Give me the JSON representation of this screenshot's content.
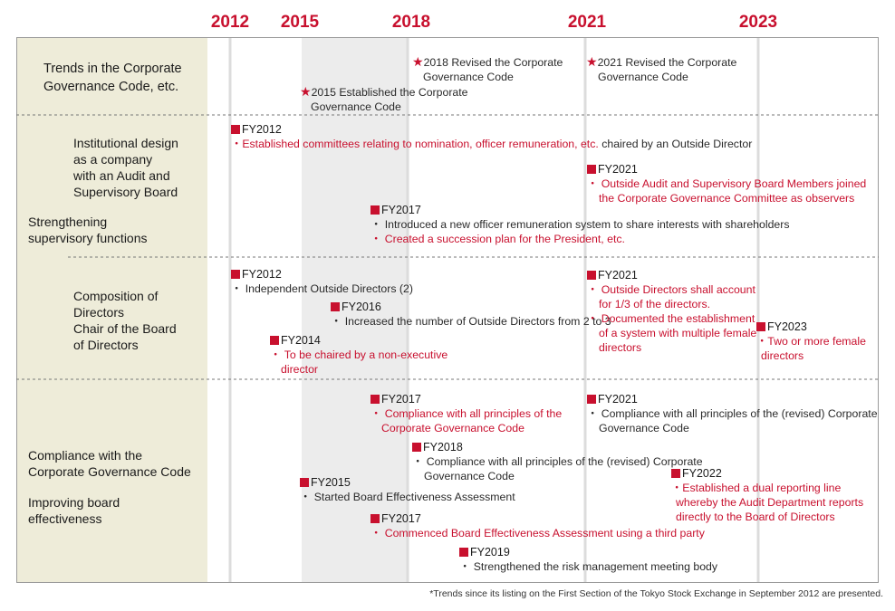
{
  "years": [
    "2012",
    "2015",
    "2018",
    "2021",
    "2023"
  ],
  "colors": {
    "accent": "#c8102e",
    "panel": "#eeecd9",
    "shade": "#ececec"
  },
  "rows": {
    "trends": {
      "label": [
        "Trends in the Corporate",
        "Governance Code, etc."
      ]
    },
    "institutional": {
      "label_a": [
        "Institutional design",
        "as a company",
        "with an Audit and",
        "Supervisory Board"
      ],
      "label_b": [
        "Strengthening",
        "supervisory functions"
      ]
    },
    "composition": {
      "label": [
        "Composition of",
        "Directors",
        "Chair of the Board",
        "of Directors"
      ]
    },
    "compliance": {
      "label_a": [
        "Compliance with the",
        "Corporate Governance Code"
      ],
      "label_b": [
        "Improving board",
        "effectiveness"
      ]
    }
  },
  "code_events": {
    "e2018": [
      "2018 Revised the Corporate",
      "Governance Code"
    ],
    "e2021": [
      "2021 Revised the Corporate",
      "Governance Code"
    ],
    "e2015": [
      "2015 Established the Corporate",
      "Governance Code"
    ],
    "star": "★"
  },
  "inst": {
    "fy2012": {
      "head": "FY2012",
      "bullet": "・",
      "red": "Established committees relating to nomination, officer remuneration, etc.",
      "dark": " chaired by an Outside Director"
    },
    "fy2021": {
      "head": "FY2021",
      "lines": [
        "・ Outside Audit and Supervisory Board Members joined",
        "the Corporate Governance Committee as observers"
      ]
    },
    "fy2017": {
      "head": "FY2017",
      "line1": "・ Introduced a new officer remuneration system to share interests with shareholders",
      "line2": "・ Created a succession plan for the President, etc."
    }
  },
  "comp": {
    "fy2012": {
      "head": "FY2012",
      "line": "・ Independent Outside Directors (2)"
    },
    "fy2016": {
      "head": "FY2016",
      "line": "・ Increased the number of Outside Directors from 2 to 3"
    },
    "fy2014": {
      "head": "FY2014",
      "lines": [
        "・ To be chaired by a non-executive",
        "director"
      ]
    },
    "fy2021": {
      "head": "FY2021",
      "lines": [
        "・ Outside Directors shall account",
        "for 1/3 of the directors.",
        "・ Documented the establishment",
        "of a system with multiple female",
        "directors"
      ]
    },
    "fy2023": {
      "head": "FY2023",
      "lines": [
        "・Two or more female",
        "directors"
      ]
    }
  },
  "cgc": {
    "fy2017a": {
      "head": "FY2017",
      "lines": [
        "・ Compliance with all principles of the",
        "Corporate Governance Code"
      ]
    },
    "fy2021": {
      "head": "FY2021",
      "lines": [
        "・ Compliance with all principles of the (revised) Corporate",
        "Governance Code"
      ]
    },
    "fy2018": {
      "head": "FY2018",
      "lines": [
        "・ Compliance with all principles of the (revised) Corporate",
        "Governance Code"
      ]
    },
    "fy2022": {
      "head": "FY2022",
      "lines": [
        "・Established a dual reporting line",
        "whereby the Audit Department reports",
        "directly to the Board of Directors"
      ]
    },
    "fy2015": {
      "head": "FY2015",
      "line": "・ Started Board Effectiveness Assessment"
    },
    "fy2017b": {
      "head": "FY2017",
      "line": "・ Commenced Board Effectiveness Assessment using a third party"
    },
    "fy2019": {
      "head": "FY2019",
      "line": "・ Strengthened the risk management meeting body"
    }
  },
  "footnote": "*Trends since its listing on the First Section of the Tokyo Stock Exchange in September 2012 are presented."
}
